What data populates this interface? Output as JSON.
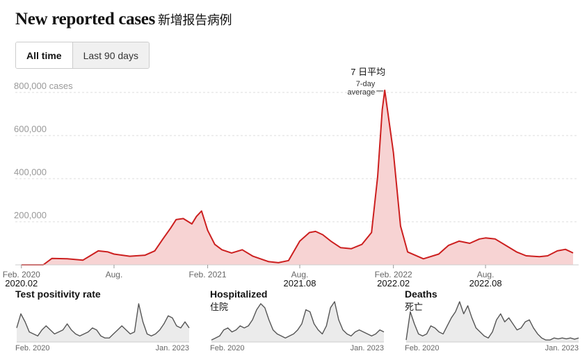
{
  "header": {
    "title": "New reported cases",
    "title_zh": "新增报告病例"
  },
  "tabs": [
    {
      "label": "All time",
      "active": true
    },
    {
      "label": "Last 90 days",
      "active": false
    }
  ],
  "annotation": {
    "label_zh": "7 日平均",
    "label_line1": "7-day",
    "label_line2": "average"
  },
  "colors": {
    "line": "#cc1f1f",
    "fill": "#f7d3d3",
    "grid": "#dddddd",
    "small_line": "#555555",
    "small_fill": "#ebebeb"
  },
  "chart_data": [
    {
      "type": "area",
      "title": "New reported cases",
      "series": [
        {
          "x": [
            "2020-02-01",
            "2020-03-15",
            "2020-04-01",
            "2020-05-01",
            "2020-06-01",
            "2020-07-01",
            "2020-07-20",
            "2020-08-01",
            "2020-09-01",
            "2020-10-01",
            "2020-10-20",
            "2020-11-05",
            "2020-11-20",
            "2020-12-01",
            "2020-12-15",
            "2021-01-01",
            "2021-01-10",
            "2021-01-20",
            "2021-02-01",
            "2021-02-15",
            "2021-03-01",
            "2021-03-20",
            "2021-04-10",
            "2021-05-01",
            "2021-06-01",
            "2021-06-20",
            "2021-07-10",
            "2021-08-01",
            "2021-08-20",
            "2021-09-01",
            "2021-09-15",
            "2021-10-01",
            "2021-10-20",
            "2021-11-10",
            "2021-12-01",
            "2021-12-20",
            "2022-01-01",
            "2022-01-10",
            "2022-01-15",
            "2022-02-01",
            "2022-02-15",
            "2022-03-01",
            "2022-04-01",
            "2022-05-01",
            "2022-05-20",
            "2022-06-10",
            "2022-07-01",
            "2022-07-20",
            "2022-08-01",
            "2022-08-20",
            "2022-09-10",
            "2022-10-01",
            "2022-10-20",
            "2022-11-15",
            "2022-12-01",
            "2022-12-20",
            "2023-01-05",
            "2023-01-20"
          ],
          "values": [
            0,
            0,
            30000,
            28000,
            22000,
            65000,
            60000,
            50000,
            40000,
            45000,
            65000,
            120000,
            170000,
            210000,
            215000,
            190000,
            225000,
            250000,
            160000,
            95000,
            70000,
            55000,
            70000,
            40000,
            15000,
            10000,
            20000,
            110000,
            150000,
            155000,
            140000,
            110000,
            80000,
            75000,
            95000,
            150000,
            410000,
            720000,
            810000,
            520000,
            180000,
            60000,
            28000,
            50000,
            90000,
            110000,
            100000,
            120000,
            125000,
            120000,
            90000,
            60000,
            42000,
            38000,
            42000,
            65000,
            72000,
            55000
          ]
        }
      ],
      "x_ticks": [
        "Feb. 2020",
        "Aug.",
        "Feb. 2021",
        "Aug.",
        "Feb. 2022",
        "Aug."
      ],
      "x_ticks_zh": [
        "2020.02",
        "2021.08",
        "2022.02",
        "2022.08"
      ],
      "y_ticks": [
        "800,000 cases",
        "600,000",
        "400,000",
        "200,000"
      ],
      "ylim": [
        0,
        800000
      ],
      "grid": true
    },
    {
      "type": "area",
      "title": "Test positivity rate",
      "title_zh": "",
      "x_start": "Feb. 2020",
      "x_end": "Jan. 2023",
      "values": [
        0.35,
        0.7,
        0.5,
        0.25,
        0.2,
        0.15,
        0.3,
        0.4,
        0.3,
        0.2,
        0.25,
        0.3,
        0.45,
        0.3,
        0.2,
        0.15,
        0.2,
        0.25,
        0.35,
        0.3,
        0.15,
        0.1,
        0.1,
        0.2,
        0.3,
        0.4,
        0.3,
        0.2,
        0.25,
        0.95,
        0.5,
        0.2,
        0.15,
        0.2,
        0.3,
        0.45,
        0.65,
        0.6,
        0.4,
        0.35,
        0.5,
        0.35
      ]
    },
    {
      "type": "area",
      "title": "Hospitalized",
      "title_zh": "住院",
      "x_start": "Feb. 2020",
      "x_end": "Jan. 2023",
      "values": [
        0.05,
        0.1,
        0.15,
        0.3,
        0.35,
        0.25,
        0.3,
        0.4,
        0.35,
        0.4,
        0.55,
        0.8,
        0.95,
        0.85,
        0.55,
        0.3,
        0.2,
        0.15,
        0.1,
        0.15,
        0.2,
        0.3,
        0.45,
        0.8,
        0.75,
        0.45,
        0.3,
        0.2,
        0.4,
        0.85,
        1.0,
        0.55,
        0.3,
        0.2,
        0.15,
        0.25,
        0.3,
        0.25,
        0.2,
        0.15,
        0.2,
        0.3,
        0.25
      ]
    },
    {
      "type": "area",
      "title": "Deaths",
      "title_zh": "死亡",
      "x_start": "Feb. 2020",
      "x_end": "Jan. 2023",
      "values": [
        0.05,
        0.75,
        0.45,
        0.2,
        0.15,
        0.2,
        0.4,
        0.35,
        0.25,
        0.2,
        0.4,
        0.6,
        0.75,
        1.0,
        0.7,
        0.9,
        0.6,
        0.35,
        0.25,
        0.15,
        0.1,
        0.25,
        0.55,
        0.7,
        0.5,
        0.6,
        0.45,
        0.3,
        0.35,
        0.5,
        0.55,
        0.35,
        0.2,
        0.1,
        0.05,
        0.05,
        0.1,
        0.08,
        0.1,
        0.08,
        0.1,
        0.07,
        0.1
      ]
    }
  ]
}
